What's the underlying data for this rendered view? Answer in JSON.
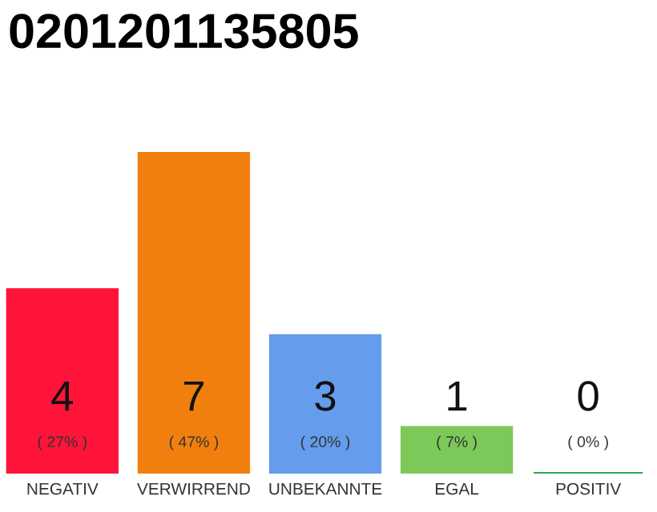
{
  "chart_data": {
    "type": "bar",
    "title": "0201201135805",
    "categories": [
      "NEGATIV",
      "VERWIRREND",
      "UNBEKANNTE",
      "EGAL",
      "POSITIV"
    ],
    "values": [
      4,
      7,
      3,
      1,
      0
    ],
    "colors": [
      "#ff1439",
      "#f07f0e",
      "#659cec",
      "#7cc95a",
      "#2ea84a"
    ],
    "tick_labels": "x",
    "grid": false,
    "legend": false,
    "value_labels": [
      "4",
      "7",
      "3",
      "1",
      "0"
    ],
    "annotations": [
      "( 27% )",
      "( 47% )",
      "( 20% )",
      "( 7% )",
      "( 0% )"
    ]
  }
}
